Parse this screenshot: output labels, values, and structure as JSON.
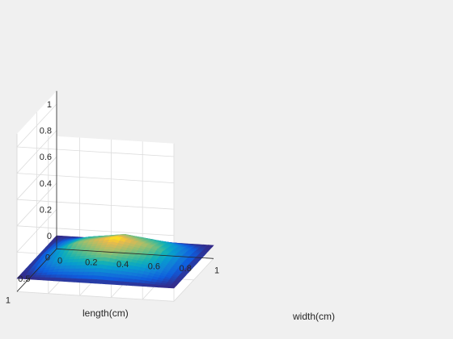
{
  "chart_data": {
    "type": "surface",
    "title": "",
    "xlabel": "width(cm)",
    "ylabel": "length(cm)",
    "zlabel": "",
    "xlim": [
      0,
      1
    ],
    "ylim": [
      0,
      1
    ],
    "zlim": [
      -0.1,
      1.1
    ],
    "x_ticks": [
      "0",
      "0.2",
      "0.4",
      "0.6",
      "0.8",
      "1"
    ],
    "y_ticks": [
      "0",
      "0.5",
      "1"
    ],
    "z_ticks": [
      "0",
      "0.2",
      "0.4",
      "0.6",
      "0.8",
      "1"
    ],
    "grid": true,
    "colormap": "parula",
    "surface": {
      "x": [
        0,
        0.25,
        0.5,
        0.75,
        1
      ],
      "y": [
        0,
        0.25,
        0.5,
        0.75,
        1
      ],
      "z": [
        [
          0.0,
          0.0,
          0.0,
          0.0,
          0.0
        ],
        [
          0.0,
          0.09,
          0.13,
          0.09,
          0.0
        ],
        [
          0.0,
          0.13,
          0.19,
          0.13,
          0.0
        ],
        [
          0.0,
          0.09,
          0.13,
          0.09,
          0.0
        ],
        [
          0.0,
          0.0,
          0.0,
          0.0,
          0.0
        ]
      ]
    }
  },
  "colors": {
    "background": "#f0f0f0",
    "axes_pane": "#ffffff",
    "grid": "#dcdcdc",
    "axis_line": "#262626"
  }
}
